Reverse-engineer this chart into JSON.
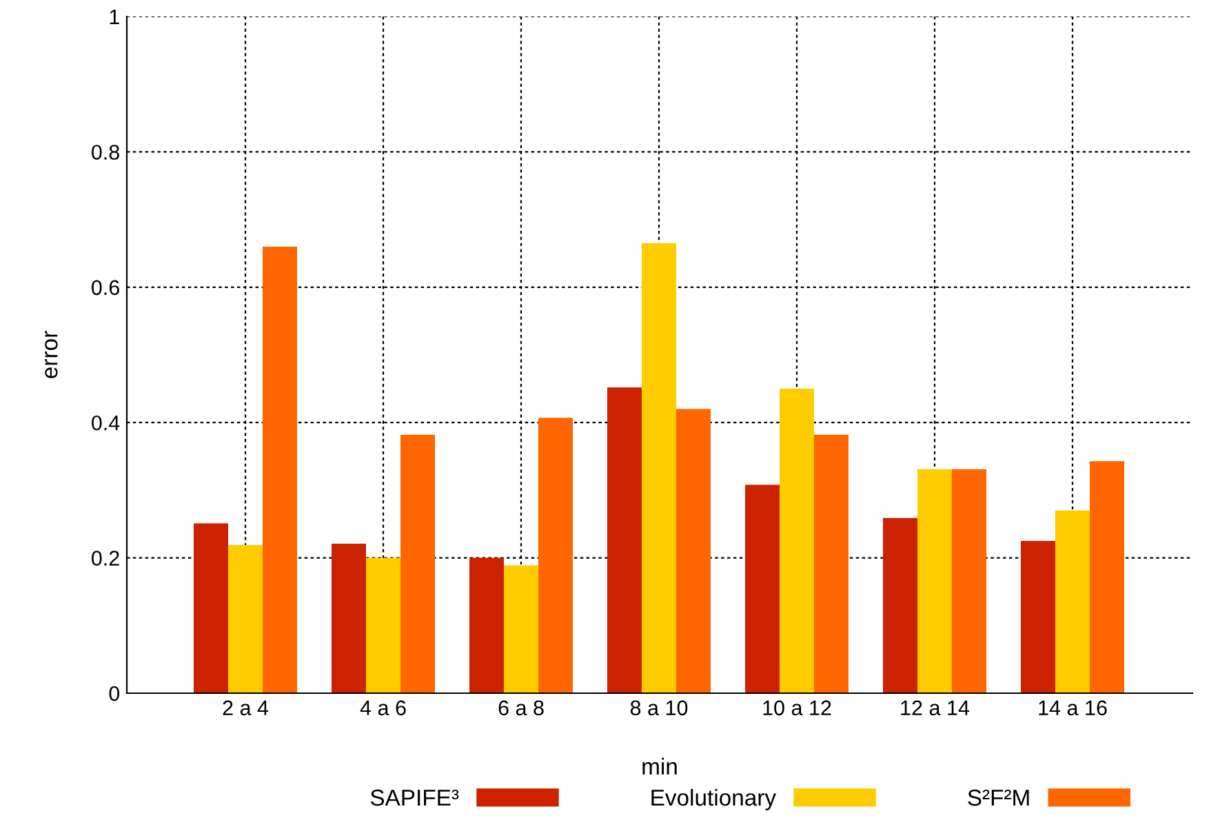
{
  "chart_data": {
    "type": "bar",
    "xlabel": "min",
    "ylabel": "error",
    "categories": [
      "2 a 4",
      "4 a 6",
      "6 a 8",
      "8 a 10",
      "10 a 12",
      "12 a 14",
      "14 a 16"
    ],
    "series": [
      {
        "name": "SAPIFE³",
        "color": "#cc2200",
        "values": [
          0.251,
          0.221,
          0.2,
          0.452,
          0.308,
          0.259,
          0.225
        ]
      },
      {
        "name": "Evolutionary",
        "color": "#ffcc00",
        "values": [
          0.219,
          0.2,
          0.189,
          0.665,
          0.45,
          0.331,
          0.27
        ]
      },
      {
        "name": "S²F²M",
        "color": "#ff6600",
        "values": [
          0.66,
          0.382,
          0.407,
          0.42,
          0.382,
          0.331,
          0.343
        ]
      }
    ],
    "ylim": [
      0,
      1
    ],
    "yticks": [
      0,
      0.2,
      0.4,
      0.6,
      0.8,
      1
    ],
    "grid": true,
    "legend": "bottom"
  }
}
